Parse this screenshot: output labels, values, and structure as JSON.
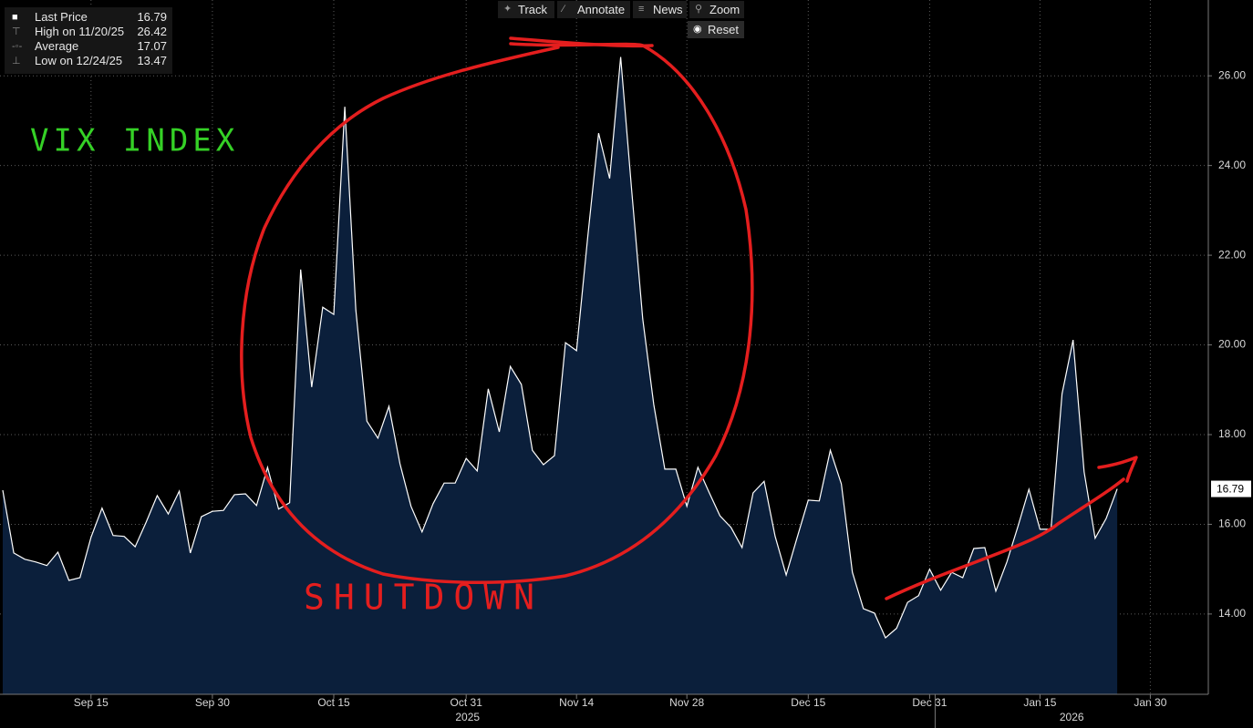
{
  "chart_data": {
    "type": "area",
    "series": [
      {
        "name": "Last Price",
        "color": "#ffffff",
        "fill": "#0b1f3b",
        "values": [
          16.76,
          15.36,
          15.22,
          15.16,
          15.08,
          15.38,
          14.75,
          14.81,
          15.71,
          16.36,
          15.75,
          15.73,
          15.5,
          16.05,
          16.64,
          16.23,
          16.74,
          15.36,
          16.17,
          16.29,
          16.31,
          16.66,
          16.68,
          16.42,
          17.27,
          16.34,
          16.48,
          21.68,
          19.06,
          20.84,
          20.68,
          25.31,
          20.78,
          18.3,
          17.92,
          18.63,
          17.35,
          16.4,
          15.83,
          16.46,
          16.92,
          16.92,
          17.47,
          17.19,
          19.02,
          18.06,
          19.52,
          19.12,
          17.65,
          17.33,
          17.53,
          20.05,
          19.87,
          22.37,
          24.72,
          23.71,
          26.42,
          23.44,
          20.58,
          18.67,
          17.23,
          17.23,
          16.4,
          17.27,
          16.72,
          16.19,
          15.93,
          15.48,
          16.7,
          16.96,
          15.73,
          14.87,
          15.71,
          16.54,
          16.52,
          17.65,
          16.9,
          14.93,
          14.12,
          14.02,
          13.47,
          13.68,
          14.26,
          14.41,
          15.0,
          14.53,
          14.93,
          14.81,
          15.46,
          15.48,
          14.51,
          15.16,
          15.95,
          16.78,
          15.89,
          15.89,
          18.91,
          20.11,
          17.17,
          15.69,
          16.13,
          16.79
        ]
      }
    ],
    "x": [
      "2025-09-03",
      "2025-09-04",
      "2025-09-05",
      "2025-09-08",
      "2025-09-09",
      "2025-09-10",
      "2025-09-11",
      "2025-09-12",
      "2025-09-15",
      "2025-09-16",
      "2025-09-17",
      "2025-09-18",
      "2025-09-19",
      "2025-09-22",
      "2025-09-23",
      "2025-09-24",
      "2025-09-25",
      "2025-09-26",
      "2025-09-29",
      "2025-09-30",
      "2025-10-01",
      "2025-10-02",
      "2025-10-03",
      "2025-10-06",
      "2025-10-07",
      "2025-10-08",
      "2025-10-09",
      "2025-10-10",
      "2025-10-13",
      "2025-10-14",
      "2025-10-15",
      "2025-10-16",
      "2025-10-17",
      "2025-10-20",
      "2025-10-21",
      "2025-10-22",
      "2025-10-23",
      "2025-10-24",
      "2025-10-27",
      "2025-10-28",
      "2025-10-29",
      "2025-10-30",
      "2025-10-31",
      "2025-11-03",
      "2025-11-04",
      "2025-11-05",
      "2025-11-06",
      "2025-11-07",
      "2025-11-10",
      "2025-11-11",
      "2025-11-12",
      "2025-11-13",
      "2025-11-14",
      "2025-11-17",
      "2025-11-18",
      "2025-11-19",
      "2025-11-20",
      "2025-11-21",
      "2025-11-24",
      "2025-11-25",
      "2025-11-26",
      "2025-11-27",
      "2025-11-28",
      "2025-12-01",
      "2025-12-02",
      "2025-12-03",
      "2025-12-04",
      "2025-12-05",
      "2025-12-08",
      "2025-12-09",
      "2025-12-10",
      "2025-12-11",
      "2025-12-12",
      "2025-12-15",
      "2025-12-16",
      "2025-12-17",
      "2025-12-18",
      "2025-12-19",
      "2025-12-22",
      "2025-12-23",
      "2025-12-24",
      "2025-12-26",
      "2025-12-29",
      "2025-12-30",
      "2025-12-31",
      "2026-01-02",
      "2026-01-05",
      "2026-01-06",
      "2026-01-07",
      "2026-01-08",
      "2026-01-09",
      "2026-01-12",
      "2026-01-13",
      "2026-01-14",
      "2026-01-15",
      "2026-01-16",
      "2026-01-20",
      "2026-01-21",
      "2026-01-22",
      "2026-01-23",
      "2026-01-26",
      "2026-01-27"
    ],
    "ylim": [
      12.21,
      27.69
    ],
    "yticks": [
      {
        "value": 14,
        "label": "14.00"
      },
      {
        "value": 16,
        "label": "16.00"
      },
      {
        "value": 18,
        "label": "18.00"
      },
      {
        "value": 20,
        "label": "20.00"
      },
      {
        "value": 22,
        "label": "22.00"
      },
      {
        "value": 24,
        "label": "24.00"
      },
      {
        "value": 26,
        "label": "26.00"
      }
    ],
    "xticks": [
      {
        "value": "2025-09-15",
        "label": "Sep 15"
      },
      {
        "value": "2025-09-30",
        "label": "Sep 30"
      },
      {
        "value": "2025-10-15",
        "label": "Oct 15"
      },
      {
        "value": "2025-10-31",
        "label": "Oct 31"
      },
      {
        "value": "2025-11-14",
        "label": "Nov 14"
      },
      {
        "value": "2025-11-28",
        "label": "Nov 28"
      },
      {
        "value": "2025-12-15",
        "label": "Dec 15"
      },
      {
        "value": "2025-12-31",
        "label": "Dec 31"
      },
      {
        "value": "2026-01-15",
        "label": "Jan 15"
      },
      {
        "value": "2026-01-30",
        "label": "Jan 30"
      }
    ],
    "year_labels": [
      "2025",
      "2026"
    ],
    "grid": true,
    "stats": [
      {
        "label": "High on 11/20/25",
        "value": 26.42
      },
      {
        "label": "Average",
        "value": 17.07
      },
      {
        "label": "Low on 12/24/25",
        "value": 13.47
      }
    ],
    "annotations": [
      "VIX INDEX",
      "SHUTDOWN"
    ]
  },
  "toolbar": [
    "Track",
    "Annotate",
    "News",
    "Zoom",
    "Reset"
  ]
}
